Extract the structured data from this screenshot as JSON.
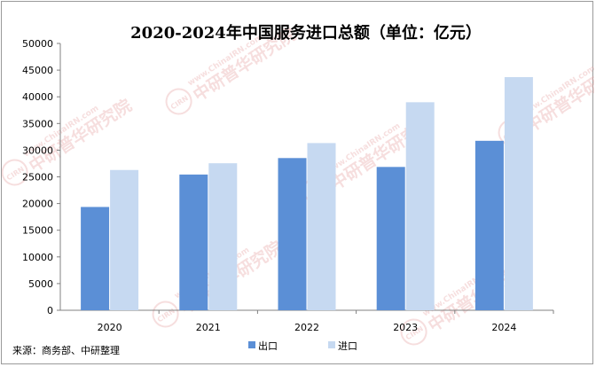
{
  "chart_data": {
    "type": "bar",
    "title": "2020-2024年中国服务进口总额（单位：亿元）",
    "categories": [
      "2020",
      "2021",
      "2022",
      "2023",
      "2024"
    ],
    "series": [
      {
        "name": "出口",
        "values": [
          19357,
          25435,
          28522,
          26856,
          31755
        ]
      },
      {
        "name": "进口",
        "values": [
          26286,
          27548,
          31330,
          38981,
          43692
        ]
      }
    ],
    "xlabel": "",
    "ylabel": "",
    "ylim": [
      0,
      50000
    ],
    "yticks": [
      0,
      5000,
      10000,
      15000,
      20000,
      25000,
      30000,
      35000,
      40000,
      45000,
      50000
    ],
    "grid": false,
    "legend": "bottom",
    "colors": [
      "#5b8fd6",
      "#c6d9f1"
    ]
  },
  "source_text": "来源：商务部、中研整理",
  "watermark": {
    "url_text": "www.ChinaIRN.com",
    "cn_text": "中研普华研究院",
    "seal_text": "CIRN",
    "color": "#e8a3a3"
  }
}
